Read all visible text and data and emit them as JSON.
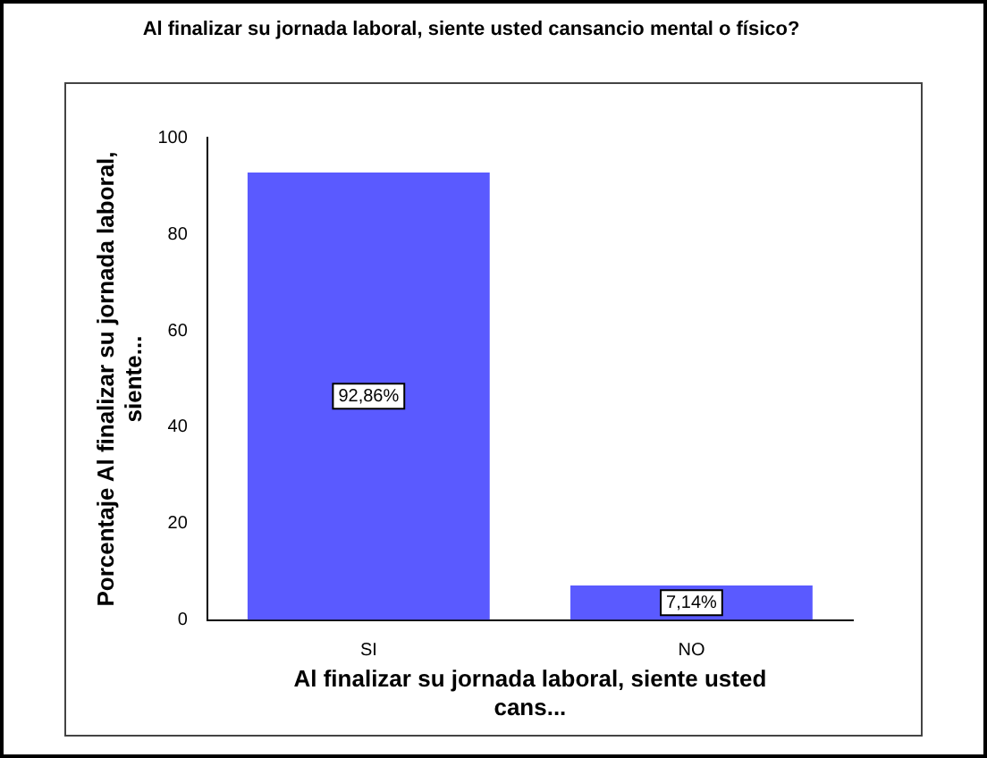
{
  "chart_data": {
    "type": "bar",
    "title": "Al finalizar su jornada laboral, siente usted cansancio mental o físico?",
    "xlabel": "Al finalizar su jornada laboral, siente usted cans...",
    "ylabel": "Porcentaje Al finalizar su jornada laboral, siente...",
    "categories": [
      "SI",
      "NO"
    ],
    "values": [
      92.86,
      7.14
    ],
    "value_labels": [
      "92,86%",
      "7,14%"
    ],
    "color": "#5a5aff",
    "ylim": [
      0,
      100
    ],
    "yticks": [
      0,
      20,
      40,
      60,
      80,
      100
    ],
    "grid": false,
    "legend": false
  }
}
